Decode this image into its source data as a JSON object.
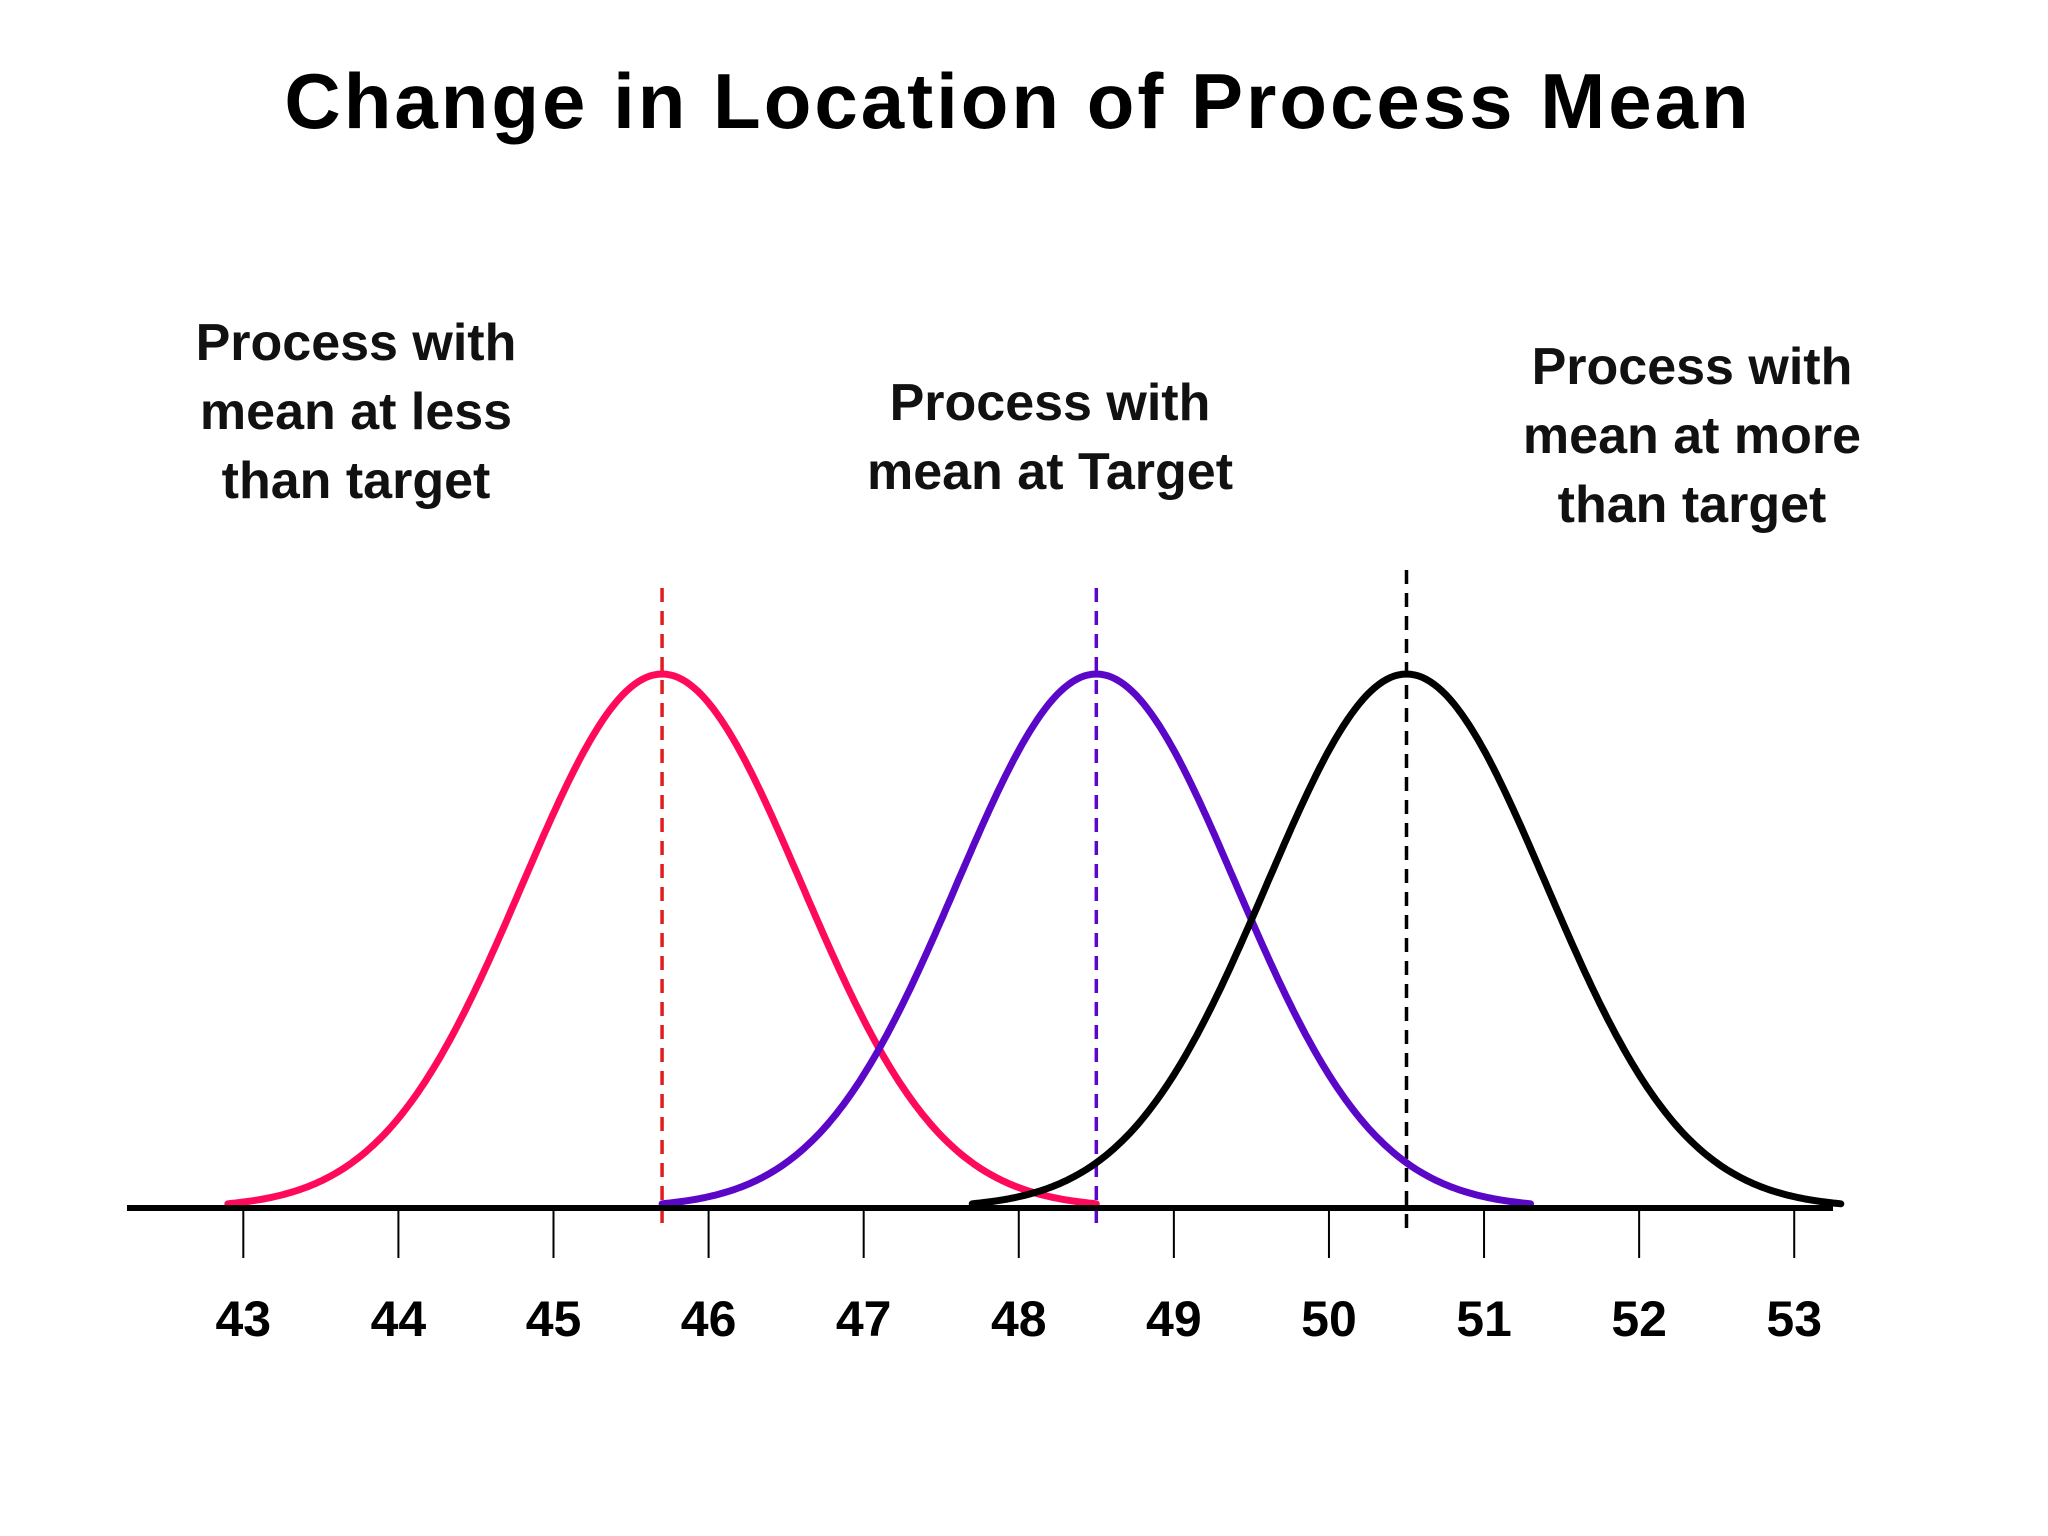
{
  "chart_data": {
    "type": "line",
    "title": "Change in Location of Process Mean",
    "xlabel": "",
    "ylabel": "",
    "xlim": [
      42.25,
      53.25
    ],
    "x_ticks": [
      43,
      44,
      45,
      46,
      47,
      48,
      49,
      50,
      51,
      52,
      53
    ],
    "grid": false,
    "legend": "none",
    "series": [
      {
        "mean": 45.7,
        "sd": 0.9,
        "x_range": [
          42.9,
          48.5
        ],
        "color": "#ff0a5a",
        "mean_line_color": "#e11d1d"
      },
      {
        "mean": 48.5,
        "sd": 0.9,
        "x_range": [
          45.7,
          51.3
        ],
        "color": "#5a07c8",
        "mean_line_color": "#5a07c8"
      },
      {
        "mean": 50.5,
        "sd": 0.9,
        "x_range": [
          47.7,
          53.3
        ],
        "color": "#000000",
        "mean_line_color": "#000000"
      }
    ],
    "annotations": [
      {
        "lines": [
          "Process with",
          "mean at less",
          "than target"
        ]
      },
      {
        "lines": [
          "Process with",
          "mean at Target"
        ]
      },
      {
        "lines": [
          "Process with",
          "mean at more",
          "than target"
        ]
      }
    ]
  }
}
